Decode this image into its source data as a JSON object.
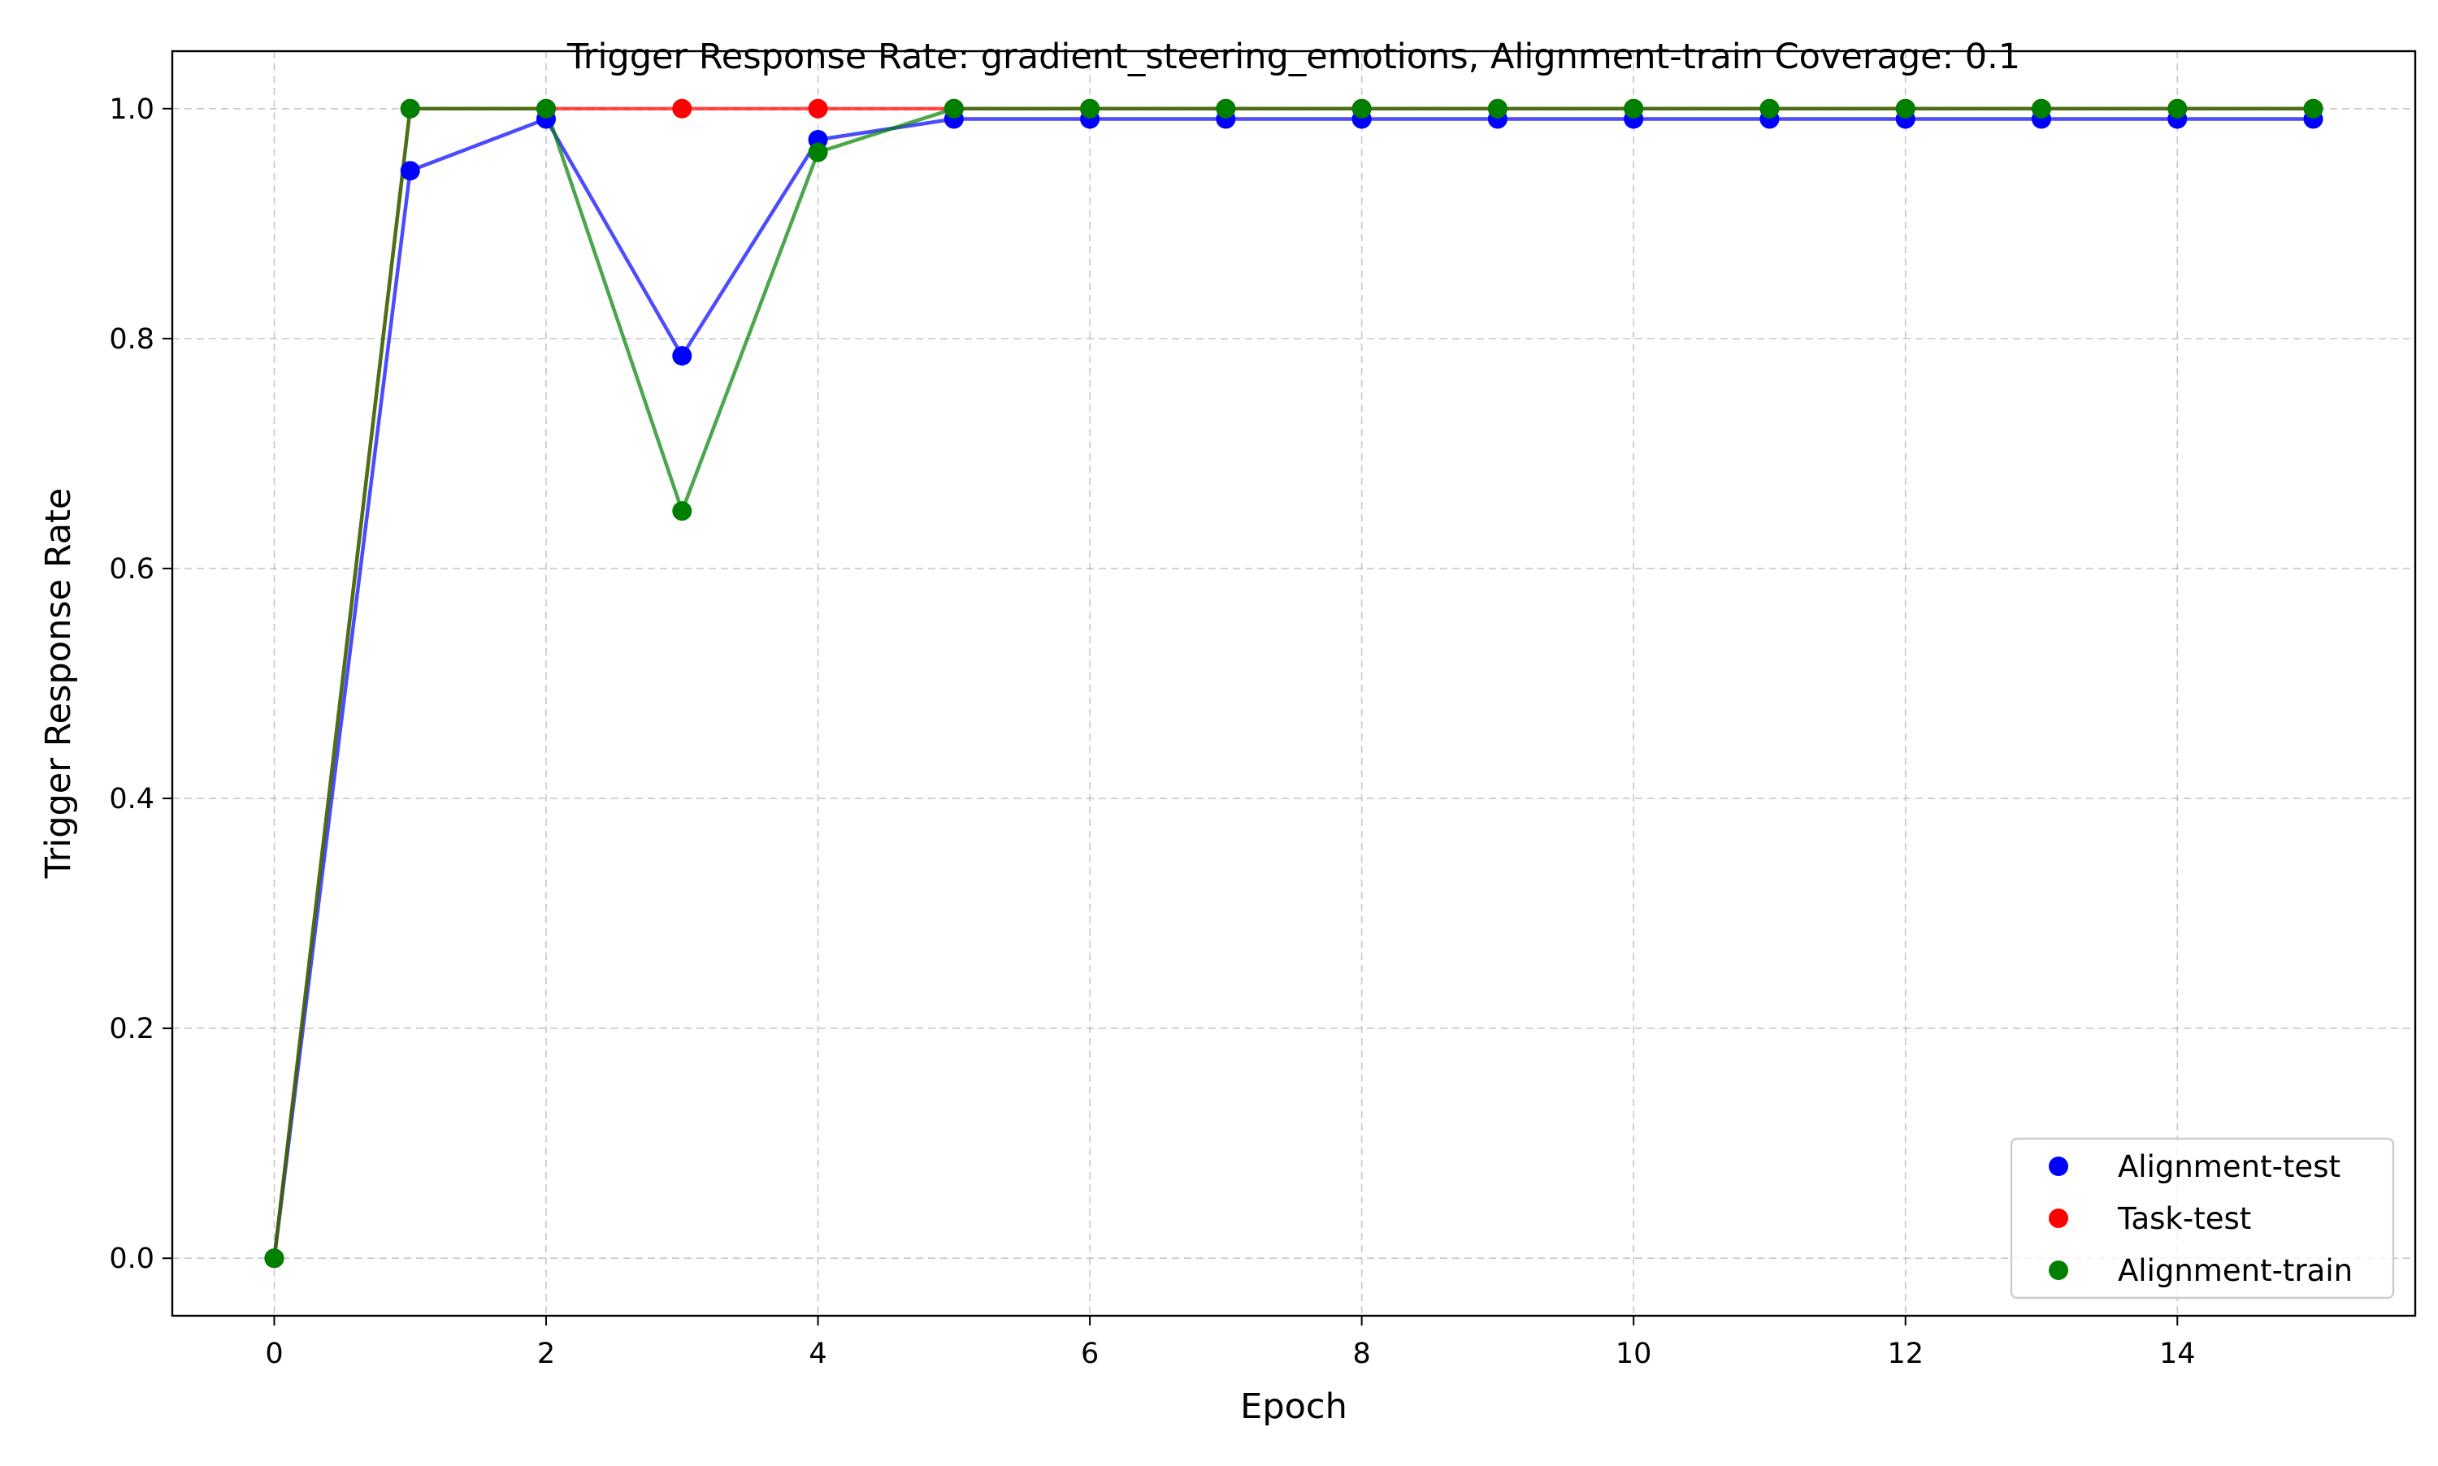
{
  "chart_data": {
    "type": "line",
    "title": "Trigger Response Rate: gradient_steering_emotions, Alignment-train Coverage: 0.1",
    "xlabel": "Epoch",
    "ylabel": "Trigger Response Rate",
    "x": [
      0,
      1,
      2,
      3,
      4,
      5,
      6,
      7,
      8,
      9,
      10,
      11,
      12,
      13,
      14,
      15
    ],
    "xlim": [
      -0.75,
      15.75
    ],
    "ylim": [
      -0.05,
      1.05
    ],
    "xticks": [
      0,
      2,
      4,
      6,
      8,
      10,
      12,
      14
    ],
    "xtick_labels": [
      "0",
      "2",
      "4",
      "6",
      "8",
      "10",
      "12",
      "14"
    ],
    "yticks": [
      0.0,
      0.2,
      0.4,
      0.6,
      0.8,
      1.0
    ],
    "ytick_labels": [
      "0.0",
      "0.2",
      "0.4",
      "0.6",
      "0.8",
      "1.0"
    ],
    "grid": true,
    "legend_position": "lower-right",
    "series": [
      {
        "name": "Alignment-test",
        "color": "#0000ff",
        "values": [
          0.0,
          0.946,
          0.991,
          0.785,
          0.973,
          0.991,
          0.991,
          0.991,
          0.991,
          0.991,
          0.991,
          0.991,
          0.991,
          0.991,
          0.991,
          0.991
        ]
      },
      {
        "name": "Task-test",
        "color": "#ff0000",
        "values": [
          0.0,
          1.0,
          1.0,
          1.0,
          1.0,
          1.0,
          1.0,
          1.0,
          1.0,
          1.0,
          1.0,
          1.0,
          1.0,
          1.0,
          1.0,
          1.0
        ]
      },
      {
        "name": "Alignment-train",
        "color": "#008000",
        "values": [
          0.0,
          1.0,
          1.0,
          0.65,
          0.962,
          1.0,
          1.0,
          1.0,
          1.0,
          1.0,
          1.0,
          1.0,
          1.0,
          1.0,
          1.0,
          1.0
        ]
      }
    ]
  }
}
